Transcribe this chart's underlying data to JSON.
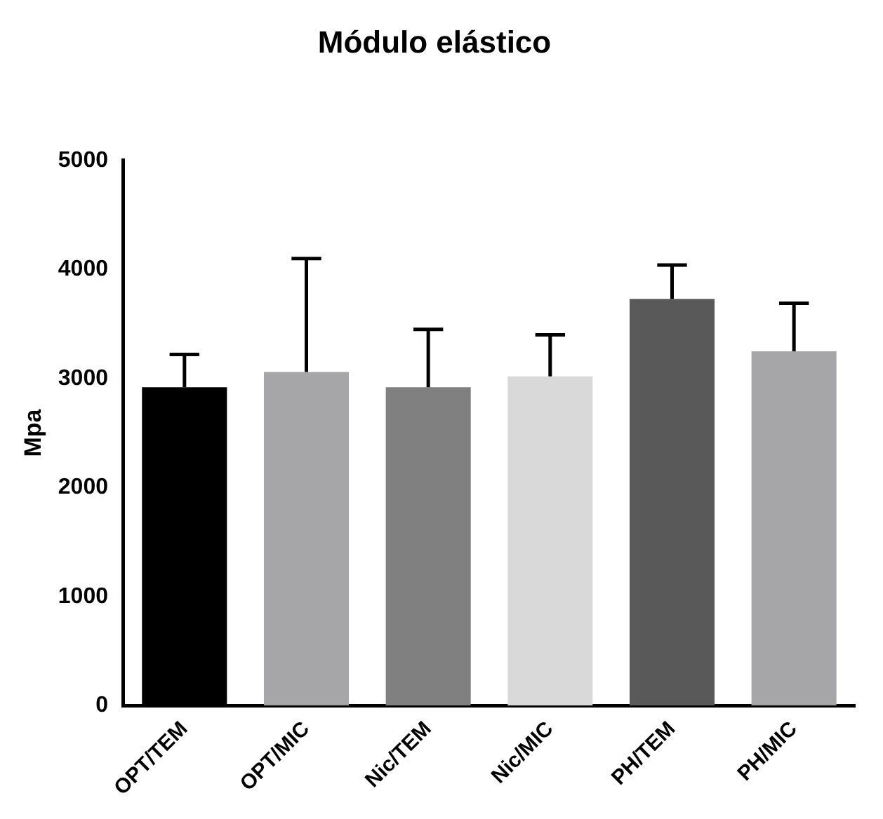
{
  "chart_data": {
    "type": "bar",
    "title": "Módulo elástico",
    "ylabel": "Mpa",
    "categories": [
      "OPT/TEM",
      "OPT/MIC",
      "Nic/TEM",
      "Nic/MIC",
      "PH/TEM",
      "PH/MIC"
    ],
    "values": [
      2920,
      3060,
      2920,
      3020,
      3730,
      3250
    ],
    "colors": [
      "#000000",
      "#a6a6a8",
      "#808080",
      "#d9d9d9",
      "#595959",
      "#a6a6a8"
    ],
    "errors": [
      [
        2920,
        3220
      ],
      [
        3060,
        4100
      ],
      [
        2920,
        3450
      ],
      [
        3020,
        3400
      ],
      [
        3730,
        4040
      ],
      [
        3250,
        3690
      ]
    ],
    "ylim": [
      0,
      5000
    ],
    "yticks": [
      0,
      1000,
      2000,
      3000,
      4000,
      5000
    ],
    "grid": false,
    "legend": false
  }
}
